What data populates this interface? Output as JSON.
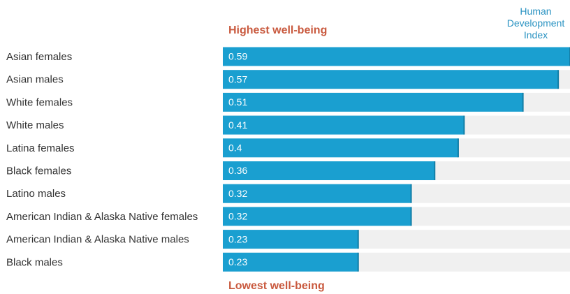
{
  "chart_data": {
    "type": "bar",
    "orientation": "horizontal",
    "value_axis_label": "Human Development Index",
    "top_annotation": "Highest well-being",
    "bottom_annotation": "Lowest well-being",
    "categories": [
      "Asian females",
      "Asian males",
      "White females",
      "White males",
      "Latina females",
      "Black females",
      "Latino males",
      "American Indian & Alaska Native females",
      "American Indian & Alaska Native males",
      "Black males"
    ],
    "values": [
      0.59,
      0.57,
      0.51,
      0.41,
      0.4,
      0.36,
      0.32,
      0.32,
      0.23,
      0.23
    ],
    "color": "#1a9fd0",
    "xlim": [
      0,
      0.59
    ]
  }
}
